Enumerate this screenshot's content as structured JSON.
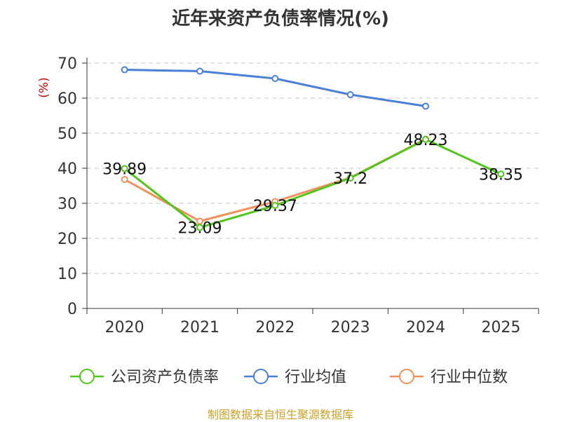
{
  "chart_data": {
    "type": "line",
    "title": "近年来资产负债率情况(%)",
    "ylabel": "(%)",
    "xlabel": "",
    "categories": [
      "2020",
      "2021",
      "2022",
      "2023",
      "2024",
      "2025"
    ],
    "yticks": [
      "0",
      "10",
      "20",
      "30",
      "40",
      "50",
      "60",
      "70"
    ],
    "ylim": [
      0,
      70
    ],
    "grid": "horizontal dashed",
    "legend_position": "bottom",
    "series": [
      {
        "name": "公司资产负债率",
        "color": "#52c41a",
        "values": [
          39.89,
          23.09,
          29.37,
          37.2,
          48.23,
          38.35
        ],
        "labels": [
          "39.89",
          "23.09",
          "29.37",
          "37.2",
          "48.23",
          "38.35"
        ]
      },
      {
        "name": "行业均值",
        "color": "#4a7fd8",
        "values": [
          68.1,
          67.7,
          65.6,
          61.0,
          57.7,
          null
        ]
      },
      {
        "name": "行业中位数",
        "color": "#f0905a",
        "values": [
          36.8,
          24.9,
          30.5,
          37.3,
          48.3,
          null
        ]
      }
    ]
  },
  "footer": {
    "source": "制图数据来自恒生聚源数据库"
  }
}
